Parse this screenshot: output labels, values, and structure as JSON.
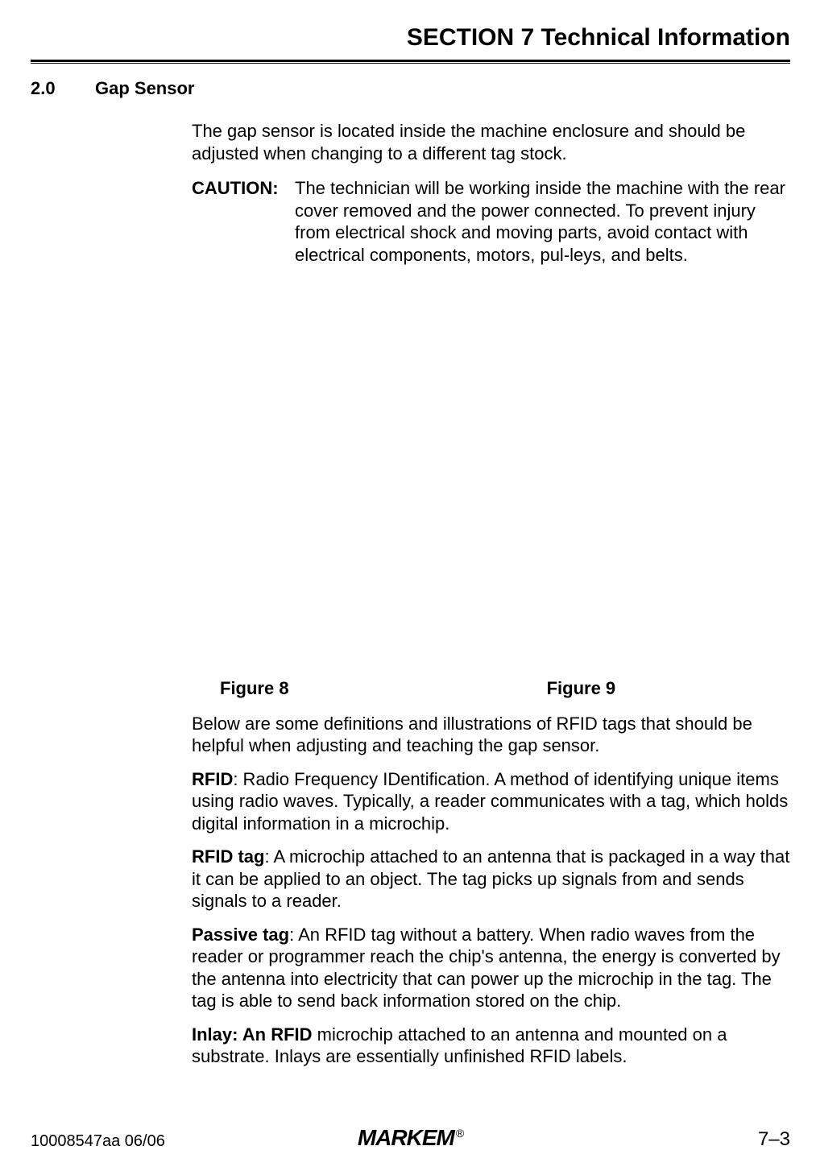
{
  "section_title": "SECTION 7 Technical Information",
  "subsection": {
    "number": "2.0",
    "title": "Gap Sensor"
  },
  "intro_para": "The gap sensor is located inside the machine enclosure and should be adjusted when changing to a different tag stock.",
  "caution_label": "CAUTION:",
  "caution_text": "The technician will be working inside the machine with the rear cover removed and the power connected. To prevent injury from electrical shock and moving parts, avoid contact with electrical components, motors, pul-leys, and belts.",
  "figure8_label": "Figure 8",
  "figure9_label": "Figure 9",
  "defs_intro": "Below are some definitions and illustrations of RFID tags that should be helpful when adjusting and teaching the gap sensor.",
  "def_rfid_term": "RFID",
  "def_rfid_text": ": Radio Frequency IDentification. A method of identifying unique items using radio waves. Typically, a reader communicates with a tag, which holds digital information in a microchip.",
  "def_rfidtag_term": "RFID tag",
  "def_rfidtag_text": ": A microchip attached to an antenna that is packaged in a way that it can be applied to an object. The tag picks up signals from and sends signals to a reader.",
  "def_passive_term": "Passive tag",
  "def_passive_text": ": An RFID tag without a battery. When radio waves from the reader or programmer reach the chip's antenna, the energy is converted by the antenna into electricity that can power up the microchip in the tag. The tag is able to send back information stored on the chip.",
  "def_inlay_term": "Inlay: An RFID",
  "def_inlay_text": " microchip attached to an antenna and mounted on a substrate. Inlays are essentially unfinished RFID labels.",
  "footer": {
    "left": "10008547aa 06/06",
    "center_brand": "MARKEM",
    "reg": "®",
    "right": "7–3"
  }
}
